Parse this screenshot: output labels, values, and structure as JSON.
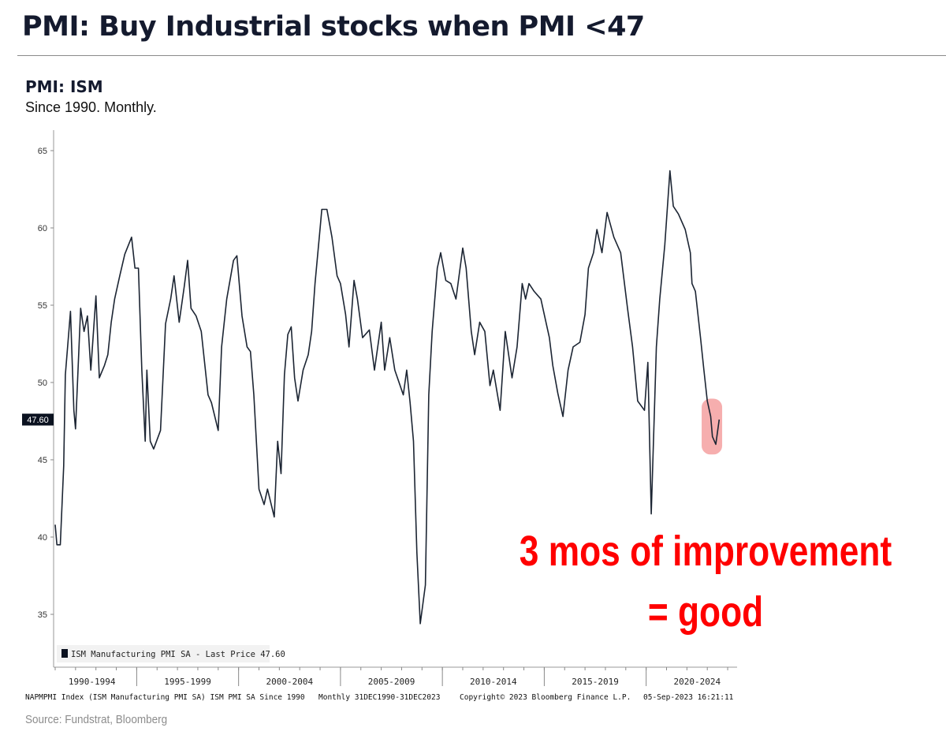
{
  "header": {
    "title": "PMI: Buy Industrial stocks when PMI <47",
    "subtitle": "PMI: ISM",
    "description": "Since 1990. Monthly."
  },
  "annotation": {
    "line1": "3 mos of improvement",
    "line2": "= good",
    "color": "#ff0000",
    "highlight_color": "#f4a0a0"
  },
  "footer": {
    "bloomberg_line_1": "NAPMPMI Index (ISM Manufacturing PMI SA) ISM PMI SA Since 1990",
    "bloomberg_line_2": "Monthly 31DEC1990-31DEC2023",
    "bloomberg_line_3": "Copyright© 2023 Bloomberg Finance L.P.",
    "bloomberg_line_4": "05-Sep-2023 16:21:11",
    "source": "Source: Fundstrat, Bloomberg"
  },
  "chart_data": {
    "type": "line",
    "title": "PMI: ISM",
    "line_color": "#1c2533",
    "legend": "ISM Manufacturing PMI SA - Last Price 47.60",
    "legend_placement": "bottom-left",
    "last_price_label": "47.60",
    "last_price": 47.6,
    "grid": false,
    "ylim": [
      32,
      66
    ],
    "yticks": [
      "65",
      "60",
      "55",
      "50",
      "45",
      "40",
      "35"
    ],
    "xlim": [
      "1991-01",
      "2024-12"
    ],
    "xtick_labels": [
      "1990-1994",
      "1995-1999",
      "2000-2004",
      "2005-2009",
      "2010-2014",
      "2015-2019",
      "2020-2024"
    ],
    "series": [
      {
        "name": "ISM Manufacturing PMI SA",
        "points": [
          [
            "1991-01",
            40.8
          ],
          [
            "1991-02",
            39.5
          ],
          [
            "1991-04",
            39.5
          ],
          [
            "1991-06",
            44.6
          ],
          [
            "1991-07",
            50.5
          ],
          [
            "1991-10",
            54.6
          ],
          [
            "1991-12",
            48.2
          ],
          [
            "1992-01",
            47.0
          ],
          [
            "1992-04",
            54.8
          ],
          [
            "1992-06",
            53.3
          ],
          [
            "1992-08",
            54.3
          ],
          [
            "1992-10",
            50.8
          ],
          [
            "1993-01",
            55.6
          ],
          [
            "1993-03",
            50.3
          ],
          [
            "1993-06",
            51.1
          ],
          [
            "1993-08",
            51.8
          ],
          [
            "1993-10",
            53.9
          ],
          [
            "1993-12",
            55.4
          ],
          [
            "1994-03",
            56.9
          ],
          [
            "1994-06",
            58.3
          ],
          [
            "1994-10",
            59.4
          ],
          [
            "1994-12",
            57.4
          ],
          [
            "1995-02",
            57.4
          ],
          [
            "1995-04",
            50.8
          ],
          [
            "1995-06",
            46.2
          ],
          [
            "1995-07",
            50.8
          ],
          [
            "1995-09",
            46.2
          ],
          [
            "1995-11",
            45.7
          ],
          [
            "1996-03",
            46.9
          ],
          [
            "1996-06",
            53.8
          ],
          [
            "1996-09",
            55.4
          ],
          [
            "1996-11",
            56.9
          ],
          [
            "1997-02",
            53.9
          ],
          [
            "1997-05",
            56.2
          ],
          [
            "1997-07",
            57.9
          ],
          [
            "1997-09",
            54.8
          ],
          [
            "1997-12",
            54.3
          ],
          [
            "1998-03",
            53.3
          ],
          [
            "1998-07",
            49.2
          ],
          [
            "1998-09",
            48.7
          ],
          [
            "1999-01",
            46.9
          ],
          [
            "1999-03",
            52.3
          ],
          [
            "1999-06",
            55.4
          ],
          [
            "1999-10",
            57.9
          ],
          [
            "1999-12",
            58.2
          ],
          [
            "2000-03",
            54.3
          ],
          [
            "2000-06",
            52.3
          ],
          [
            "2000-08",
            52.0
          ],
          [
            "2000-10",
            49.2
          ],
          [
            "2001-01",
            43.1
          ],
          [
            "2001-04",
            42.1
          ],
          [
            "2001-06",
            43.1
          ],
          [
            "2001-10",
            41.3
          ],
          [
            "2001-12",
            46.2
          ],
          [
            "2002-02",
            44.1
          ],
          [
            "2002-04",
            50.5
          ],
          [
            "2002-06",
            53.1
          ],
          [
            "2002-08",
            53.6
          ],
          [
            "2002-10",
            50.3
          ],
          [
            "2002-12",
            48.8
          ],
          [
            "2003-03",
            50.8
          ],
          [
            "2003-06",
            51.8
          ],
          [
            "2003-08",
            53.3
          ],
          [
            "2003-10",
            56.4
          ],
          [
            "2004-01",
            60.0
          ],
          [
            "2004-02",
            61.2
          ],
          [
            "2004-05",
            61.2
          ],
          [
            "2004-08",
            59.4
          ],
          [
            "2004-11",
            56.9
          ],
          [
            "2005-01",
            56.4
          ],
          [
            "2005-04",
            54.4
          ],
          [
            "2005-06",
            52.3
          ],
          [
            "2005-09",
            56.6
          ],
          [
            "2005-11",
            55.4
          ],
          [
            "2006-02",
            52.9
          ],
          [
            "2006-06",
            53.4
          ],
          [
            "2006-09",
            50.8
          ],
          [
            "2007-01",
            53.9
          ],
          [
            "2007-03",
            50.8
          ],
          [
            "2007-06",
            52.9
          ],
          [
            "2007-09",
            50.8
          ],
          [
            "2008-02",
            49.2
          ],
          [
            "2008-04",
            50.8
          ],
          [
            "2008-06",
            48.7
          ],
          [
            "2008-08",
            46.2
          ],
          [
            "2008-10",
            39.0
          ],
          [
            "2008-12",
            34.4
          ],
          [
            "2009-03",
            36.9
          ],
          [
            "2009-05",
            49.2
          ],
          [
            "2009-07",
            53.3
          ],
          [
            "2009-10",
            57.4
          ],
          [
            "2009-12",
            58.4
          ],
          [
            "2010-03",
            56.6
          ],
          [
            "2010-06",
            56.4
          ],
          [
            "2010-09",
            55.4
          ],
          [
            "2011-01",
            58.7
          ],
          [
            "2011-03",
            57.4
          ],
          [
            "2011-06",
            53.3
          ],
          [
            "2011-08",
            51.8
          ],
          [
            "2011-11",
            53.9
          ],
          [
            "2012-02",
            53.3
          ],
          [
            "2012-05",
            49.8
          ],
          [
            "2012-07",
            50.8
          ],
          [
            "2012-11",
            48.2
          ],
          [
            "2013-02",
            53.3
          ],
          [
            "2013-06",
            50.3
          ],
          [
            "2013-09",
            52.3
          ],
          [
            "2013-12",
            56.4
          ],
          [
            "2014-02",
            55.4
          ],
          [
            "2014-04",
            56.4
          ],
          [
            "2014-07",
            55.9
          ],
          [
            "2014-11",
            55.4
          ],
          [
            "2015-01",
            54.4
          ],
          [
            "2015-04",
            52.9
          ],
          [
            "2015-06",
            51.1
          ],
          [
            "2015-09",
            49.3
          ],
          [
            "2015-12",
            47.8
          ],
          [
            "2016-03",
            50.8
          ],
          [
            "2016-06",
            52.3
          ],
          [
            "2016-10",
            52.6
          ],
          [
            "2017-01",
            54.4
          ],
          [
            "2017-03",
            57.4
          ],
          [
            "2017-06",
            58.4
          ],
          [
            "2017-08",
            59.9
          ],
          [
            "2017-11",
            58.4
          ],
          [
            "2018-02",
            61.0
          ],
          [
            "2018-06",
            59.4
          ],
          [
            "2018-10",
            58.4
          ],
          [
            "2019-02",
            54.8
          ],
          [
            "2019-05",
            52.3
          ],
          [
            "2019-08",
            48.8
          ],
          [
            "2019-12",
            48.2
          ],
          [
            "2020-02",
            51.3
          ],
          [
            "2020-04",
            41.5
          ],
          [
            "2020-07",
            52.3
          ],
          [
            "2020-09",
            55.4
          ],
          [
            "2020-12",
            58.9
          ],
          [
            "2021-03",
            63.7
          ],
          [
            "2021-05",
            61.4
          ],
          [
            "2021-08",
            60.9
          ],
          [
            "2021-12",
            59.9
          ],
          [
            "2022-03",
            58.4
          ],
          [
            "2022-04",
            56.4
          ],
          [
            "2022-06",
            55.9
          ],
          [
            "2022-09",
            52.9
          ],
          [
            "2022-11",
            50.8
          ],
          [
            "2023-01",
            48.8
          ],
          [
            "2023-03",
            47.8
          ],
          [
            "2023-04",
            46.5
          ],
          [
            "2023-06",
            46.0
          ],
          [
            "2023-08",
            47.6
          ]
        ]
      }
    ]
  }
}
